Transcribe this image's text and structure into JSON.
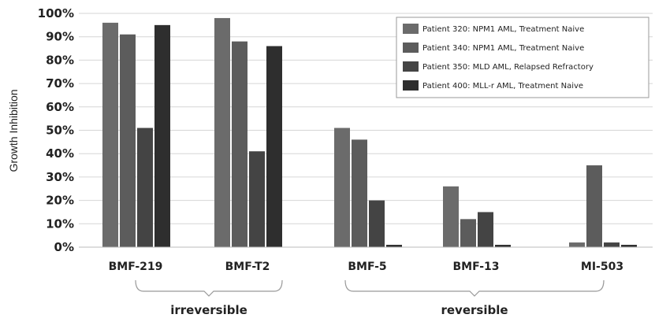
{
  "chart_data": {
    "type": "bar",
    "title": "",
    "xlabel": "",
    "ylabel": "Growth Inhibition",
    "ylim": [
      0,
      100
    ],
    "yticks": [
      "0%",
      "10%",
      "20%",
      "30%",
      "40%",
      "50%",
      "60%",
      "70%",
      "80%",
      "90%",
      "100%"
    ],
    "grid": true,
    "legend_position": "top-right",
    "categories": [
      "BMF-219",
      "BMF-T2",
      "BMF-5",
      "BMF-13",
      "MI-503"
    ],
    "series": [
      {
        "name": "Patient 320: NPM1 AML, Treatment Naive",
        "color": "#6b6b6b",
        "values": [
          96,
          98,
          51,
          26,
          2
        ]
      },
      {
        "name": "Patient 340: NPM1 AML, Treatment Naive",
        "color": "#5c5c5c",
        "values": [
          91,
          88,
          46,
          12,
          35
        ]
      },
      {
        "name": "Patient 350: MLD AML, Relapsed Refractory",
        "color": "#444444",
        "values": [
          51,
          41,
          20,
          15,
          2
        ]
      },
      {
        "name": "Patient 400: MLL-r AML, Treatment Naive",
        "color": "#2e2e2e",
        "values": [
          95,
          86,
          1,
          1,
          1
        ]
      }
    ],
    "groups": [
      {
        "label": "irreversible",
        "categories": [
          "BMF-219",
          "BMF-T2"
        ]
      },
      {
        "label": "reversible",
        "categories": [
          "BMF-5",
          "BMF-13",
          "MI-503"
        ]
      }
    ]
  }
}
